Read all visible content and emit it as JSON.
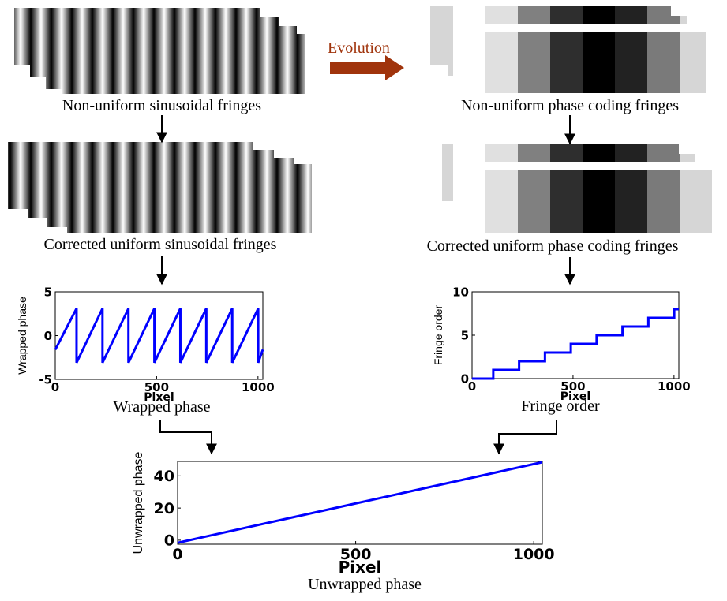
{
  "diagram": {
    "evolution": "Evolution",
    "captions": [
      "Non-uniform sinusoidal fringes",
      "Non-uniform phase coding fringes",
      "Corrected uniform sinusoidal fringes",
      "Corrected uniform phase coding fringes"
    ]
  },
  "chart_data": [
    {
      "type": "line",
      "title": "Wrapped phase",
      "x_label": "Pixel",
      "y_label": "Wrapped phase",
      "color": "#0000ff",
      "x": [
        0,
        105,
        105,
        233,
        233,
        361,
        361,
        489,
        489,
        617,
        617,
        745,
        745,
        873,
        873,
        1001,
        1001,
        1024
      ],
      "values": [
        -1.6,
        3.1,
        -3.1,
        3.1,
        -3.1,
        3.1,
        -3.1,
        3.1,
        -3.1,
        3.1,
        -3.1,
        3.1,
        -3.1,
        3.1,
        -3.1,
        3.1,
        -3.1,
        -1.6
      ],
      "xlim": [
        0,
        1024
      ],
      "xticks": [
        0,
        500,
        1000
      ],
      "ylim": [
        -5,
        5
      ],
      "yticks": [
        -5,
        0,
        5
      ]
    },
    {
      "type": "line",
      "title": "Fringe order",
      "x_label": "Pixel",
      "y_label": "Fringe order",
      "color": "#0000ff",
      "x": [
        0,
        105,
        105,
        233,
        233,
        361,
        361,
        489,
        489,
        617,
        617,
        745,
        745,
        873,
        873,
        1001,
        1001,
        1024
      ],
      "values": [
        0,
        0,
        1,
        1,
        2,
        2,
        3,
        3,
        4,
        4,
        5,
        5,
        6,
        6,
        7,
        7,
        8,
        8
      ],
      "xlim": [
        0,
        1024
      ],
      "xticks": [
        0,
        500,
        1000
      ],
      "ylim": [
        0,
        10
      ],
      "yticks": [
        0,
        5,
        10
      ]
    },
    {
      "type": "line",
      "title": "Unwrapped phase",
      "x_label": "Pixel",
      "y_label": "Unwrapped phase",
      "color": "#0000ff",
      "x": [
        0,
        1024
      ],
      "values": [
        -1.6,
        48.5
      ],
      "xlim": [
        0,
        1024
      ],
      "xticks": [
        0,
        500,
        1000
      ],
      "ylim": [
        -2.5,
        49
      ],
      "yticks": [
        0,
        20,
        40
      ]
    }
  ]
}
